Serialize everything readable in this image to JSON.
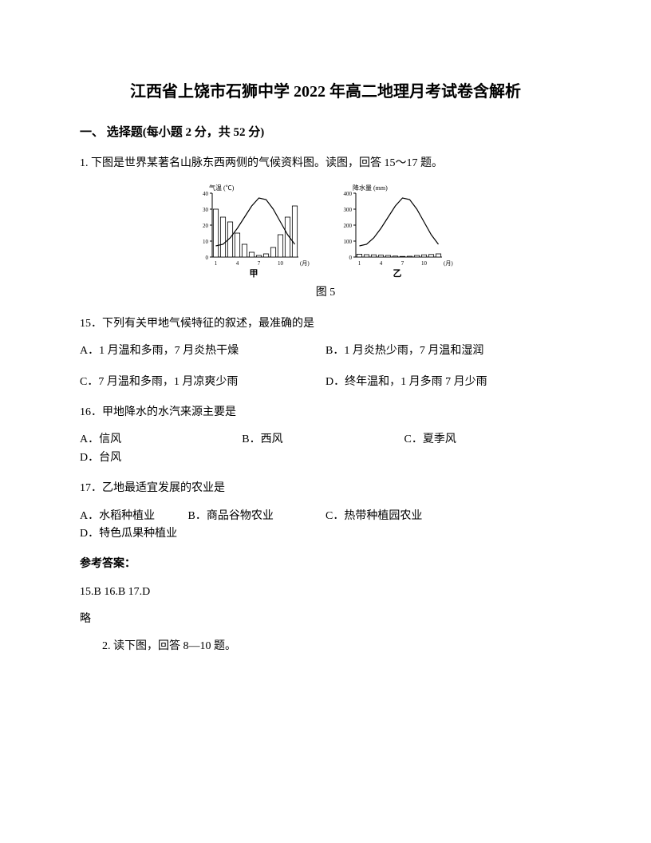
{
  "title": "江西省上饶市石狮中学 2022 年高二地理月考试卷含解析",
  "section1_heading": "一、 选择题(每小题 2 分，共 52 分)",
  "q1_intro": "1. 下图是世界某著名山脉东西两侧的气候资料图。读图，回答 15～17 题。",
  "chart_caption": "图 5",
  "chart_left": {
    "label": "甲",
    "y_axis_label": "气温 (℃)",
    "y_ticks": [
      0,
      10,
      20,
      30,
      40
    ],
    "x_ticks": [
      1,
      4,
      7,
      10
    ],
    "x_unit": "(月)",
    "temp_curve": [
      7,
      8,
      12,
      18,
      25,
      32,
      37,
      36,
      30,
      22,
      14,
      8
    ],
    "precip_bars": [
      30,
      25,
      22,
      15,
      8,
      3,
      1,
      2,
      6,
      14,
      25,
      32
    ],
    "precip_scale_max": 40,
    "colors": {
      "axis": "#000000",
      "bar_fill": "#ffffff",
      "bar_stroke": "#000000",
      "curve": "#000000",
      "bg": "#ffffff"
    }
  },
  "chart_right": {
    "label": "乙",
    "y_axis_label": "降水量 (mm)",
    "y_ticks": [
      0,
      100,
      200,
      300,
      400
    ],
    "x_ticks": [
      1,
      4,
      7,
      10
    ],
    "x_unit": "(月)",
    "temp_curve": [
      7,
      8,
      12,
      18,
      25,
      32,
      37,
      36,
      30,
      22,
      14,
      8
    ],
    "precip_bars": [
      18,
      15,
      14,
      12,
      10,
      6,
      4,
      5,
      10,
      14,
      16,
      20
    ],
    "precip_scale_max": 400,
    "colors": {
      "axis": "#000000",
      "bar_fill": "#ffffff",
      "bar_stroke": "#000000",
      "curve": "#000000",
      "bg": "#ffffff"
    }
  },
  "q15": {
    "text": "15．下列有关甲地气候特征的叙述，最准确的是",
    "optA": "A．1 月温和多雨，7 月炎热干燥",
    "optB": "B．1 月炎热少雨，7 月温和湿润",
    "optC": "C．7 月温和多雨，1 月凉爽少雨",
    "optD": "D．终年温和，1 月多雨 7 月少雨"
  },
  "q16": {
    "text": "16．甲地降水的水汽来源主要是",
    "optA": "A．信风",
    "optB": "B．西风",
    "optC": "C．夏季风",
    "optD": "D．台风"
  },
  "q17": {
    "text": "17．乙地最适宜发展的农业是",
    "optA": "A．水稻种植业",
    "optB": "B．商品谷物农业",
    "optC": "C．热带种植园农业",
    "optD": "D．特色瓜果种植业"
  },
  "answer_label": "参考答案：",
  "answer_text": "15.B  16.B  17.D",
  "answer_note": "略",
  "q2_intro": "2. 读下图，回答 8—10 题。"
}
